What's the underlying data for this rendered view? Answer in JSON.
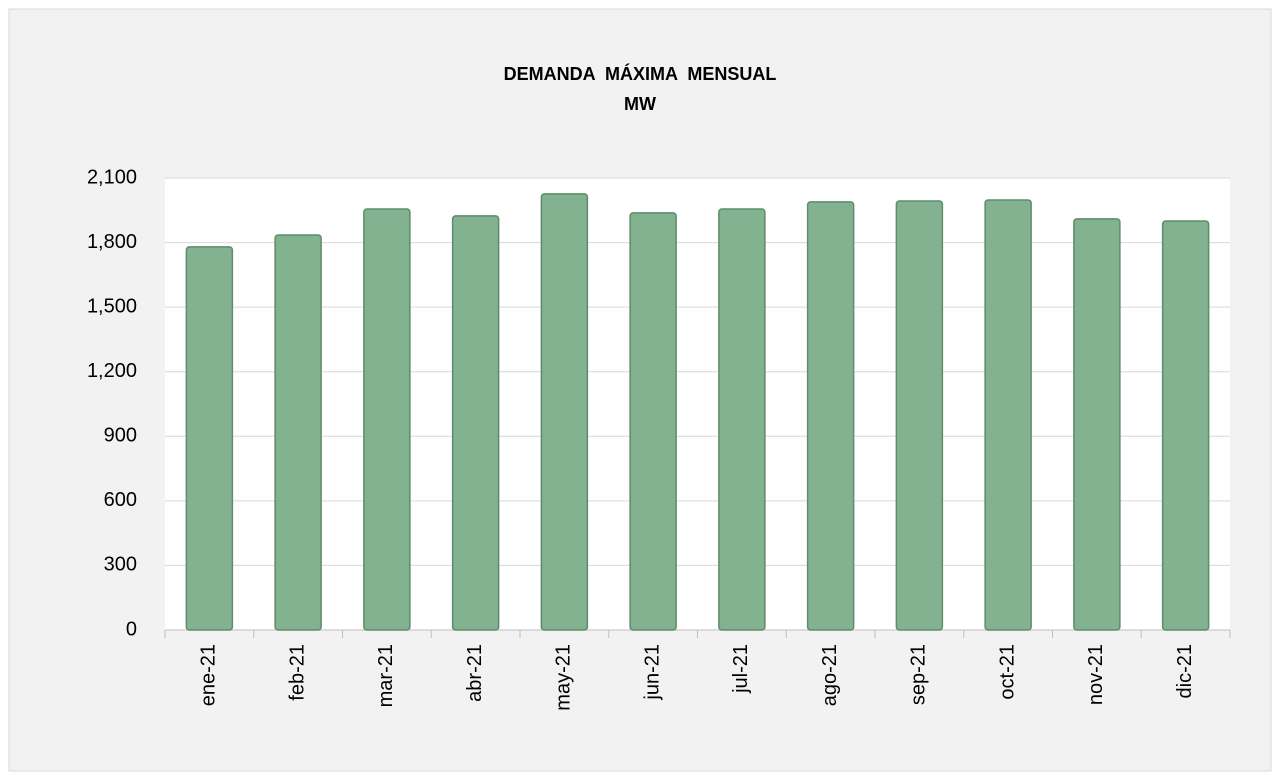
{
  "chart_data": {
    "type": "bar",
    "title": "DEMANDA  MÁXIMA  MENSUAL",
    "subtitle": "MW",
    "categories": [
      "ene-21",
      "feb-21",
      "mar-21",
      "abr-21",
      "may-21",
      "jun-21",
      "jul-21",
      "ago-21",
      "sep-21",
      "oct-21",
      "nov-21",
      "dic-21"
    ],
    "values": [
      1780,
      1835,
      1956,
      1924,
      2026,
      1938,
      1956,
      1989,
      1993,
      1998,
      1910,
      1900
    ],
    "color": "#82b290",
    "ylim": [
      0,
      2100
    ],
    "yticks": [
      0,
      300,
      600,
      900,
      {
        "value": 1200,
        "label": "1,200"
      },
      {
        "value": 1500,
        "label": "1,500"
      },
      {
        "value": 1800,
        "label": "1,800"
      },
      {
        "value": 2100,
        "label": "2,100"
      }
    ],
    "grid": true
  }
}
